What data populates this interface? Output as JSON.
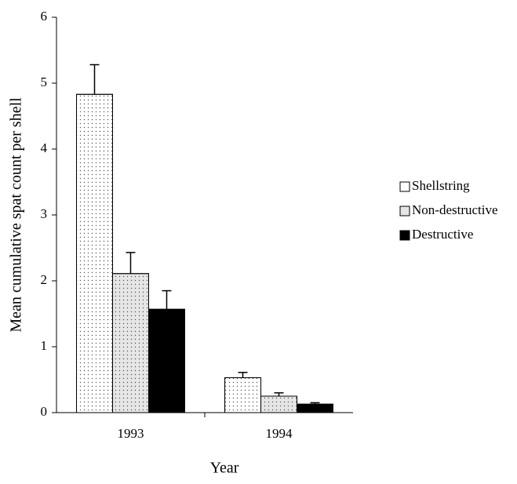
{
  "chart_data": {
    "type": "bar",
    "x_label": "Year",
    "y_label": "Mean cumulative spat count per shell",
    "categories": [
      "1993",
      "1994"
    ],
    "series": [
      {
        "name": "Shellstring",
        "color": "#ffffff",
        "pattern": "dots",
        "values": [
          4.83,
          0.53
        ],
        "errors": [
          0.45,
          0.08
        ]
      },
      {
        "name": "Non-destructive",
        "color": "#e6e6e6",
        "pattern": "dots",
        "values": [
          2.11,
          0.25
        ],
        "errors": [
          0.32,
          0.05
        ]
      },
      {
        "name": "Destructive",
        "color": "#000000",
        "values": [
          1.57,
          0.13
        ],
        "errors": [
          0.28,
          0.02
        ]
      }
    ],
    "ylim": [
      0,
      6
    ],
    "yticks": [
      0,
      1,
      2,
      3,
      4,
      5,
      6
    ],
    "grid": false,
    "legend": "right"
  }
}
